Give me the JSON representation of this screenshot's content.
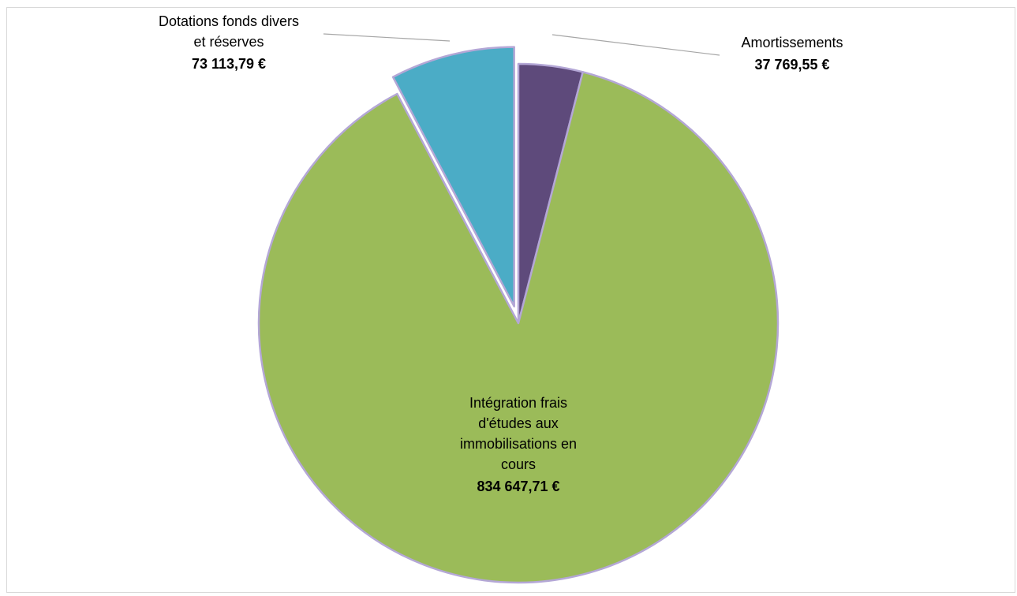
{
  "chart_data": {
    "type": "pie",
    "title": "",
    "currency": "€",
    "slices": [
      {
        "name": "Amortissements",
        "label_lines": [
          "Amortissements"
        ],
        "value": 37769.55,
        "value_label": "37 769,55 €",
        "color": "#5e4a7b",
        "exploded": false
      },
      {
        "name": "Intégration frais d'études aux immobilisations en cours",
        "label_lines": [
          "Intégration frais",
          "d'études aux",
          "immobilisations en",
          "cours"
        ],
        "value": 834647.71,
        "value_label": "834 647,71 €",
        "color": "#9bbb59",
        "exploded": false
      },
      {
        "name": "Dotations fonds divers et réserves",
        "label_lines": [
          "Dotations fonds divers",
          "et réserves"
        ],
        "value": 73113.79,
        "value_label": "73 113,79 €",
        "color": "#4bacc6",
        "exploded": true
      }
    ],
    "start_angle_deg": 0,
    "direction": "clockwise",
    "slice_border_color": "#b4a7d6",
    "frame_border_color": "#d9d9d9",
    "leader_line_color": "#a6a6a6",
    "legend": "none"
  }
}
